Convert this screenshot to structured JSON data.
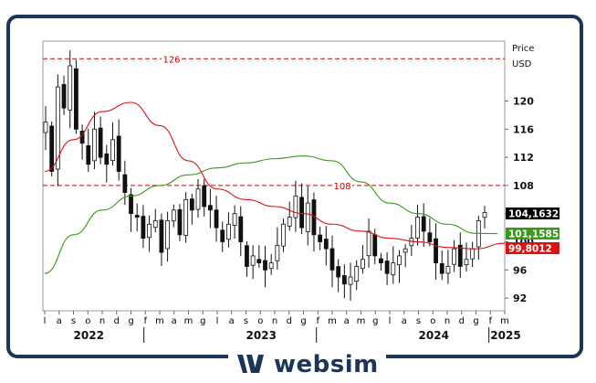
{
  "brand": {
    "name": "websim",
    "color": "#1c3559"
  },
  "chart_data": {
    "type": "candlestick",
    "axis_title": "Price",
    "axis_unit": "USD",
    "y_ticks": [
      92,
      96,
      100,
      104,
      108,
      112,
      116,
      120
    ],
    "ylim": [
      90.2,
      128.5
    ],
    "month_labels": [
      "l",
      "a",
      "s",
      "o",
      "n",
      "d",
      "g",
      "f",
      "m",
      "a",
      "m",
      "g",
      "l",
      "a",
      "s",
      "o",
      "n",
      "d",
      "g",
      "f",
      "m",
      "a",
      "m",
      "g",
      "l",
      "a",
      "s",
      "o",
      "n",
      "d",
      "g",
      "f",
      "m"
    ],
    "year_labels": [
      {
        "text": "2022",
        "month_index": 3
      },
      {
        "text": "2023",
        "month_index": 15
      },
      {
        "text": "2024",
        "month_index": 27
      },
      {
        "text": "2025",
        "month_index": 32
      }
    ],
    "year_separators": [
      6.9,
      18.9,
      30.9
    ],
    "levels": [
      {
        "value": 126,
        "label": "126"
      },
      {
        "value": 108,
        "label": "108"
      }
    ],
    "price_close": [
      117.0,
      110.0,
      122.0,
      119.0,
      125.0,
      116.0,
      114.0,
      111.0,
      116.0,
      112.0,
      111.0,
      114.5,
      110.0,
      107.0,
      104.0,
      103.5,
      100.5,
      102.5,
      103.0,
      98.5,
      103.0,
      104.5,
      101.0,
      106.0,
      104.5,
      107.5,
      105.0,
      104.5,
      102.0,
      100.0,
      102.5,
      104.0,
      100.0,
      96.5,
      98.0,
      97.0,
      96.0,
      97.0,
      99.5,
      102.5,
      103.5,
      106.5,
      102.0,
      105.5,
      101.0,
      100.0,
      99.0,
      96.0,
      95.0,
      94.0,
      95.0,
      96.5,
      97.5,
      101.5,
      98.0,
      97.0,
      95.5,
      97.0,
      98.0,
      99.0,
      100.5,
      103.5,
      101.5,
      100.0,
      97.0,
      95.5,
      96.5,
      99.0,
      96.5,
      97.5,
      99.0,
      103.0,
      104.16
    ],
    "series": [
      {
        "name": "104,1632",
        "latest": "104,1632",
        "color": "#000000",
        "values": [
          117.0,
          110.0,
          122.0,
          119.0,
          125.0,
          116.0,
          114.0,
          111.0,
          116.0,
          112.0,
          111.0,
          114.5,
          110.0,
          107.0,
          104.0,
          103.5,
          100.5,
          102.5,
          103.0,
          98.5,
          103.0,
          104.5,
          101.0,
          106.0,
          104.5,
          107.5,
          105.0,
          104.5,
          102.0,
          100.0,
          102.5,
          104.0,
          100.0,
          96.5,
          98.0,
          97.0,
          96.0,
          97.0,
          99.5,
          102.5,
          103.5,
          106.5,
          102.0,
          105.5,
          101.0,
          100.0,
          99.0,
          96.0,
          95.0,
          94.0,
          95.0,
          96.5,
          97.5,
          101.5,
          98.0,
          97.0,
          95.5,
          97.0,
          98.0,
          99.0,
          100.5,
          103.5,
          101.5,
          100.0,
          97.0,
          95.5,
          96.5,
          99.0,
          96.5,
          97.5,
          99.0,
          103.0,
          104.16
        ]
      },
      {
        "name": "101,1585",
        "latest": "101,1585",
        "color": "#3a9a1a",
        "x": [
          0,
          2,
          4,
          6,
          8,
          10,
          12,
          14,
          16,
          18,
          20,
          22,
          24,
          26,
          28,
          30,
          31.5
        ],
        "values": [
          95.5,
          101.0,
          104.5,
          106.5,
          108.0,
          109.5,
          110.5,
          111.2,
          111.8,
          112.2,
          111.5,
          108.5,
          105.5,
          104.0,
          102.5,
          101.2,
          101.16
        ]
      },
      {
        "name": "99,8012",
        "latest": "99,8012",
        "color": "#dd1111",
        "x": [
          0,
          2,
          4,
          6,
          8,
          10,
          12,
          14,
          16,
          18,
          20,
          22,
          24,
          26,
          28,
          30,
          32
        ],
        "values": [
          110.0,
          114.5,
          118.5,
          119.8,
          116.5,
          111.5,
          107.5,
          106.0,
          105.0,
          104.0,
          102.5,
          101.5,
          100.5,
          100.0,
          99.2,
          99.0,
          99.8
        ]
      }
    ]
  }
}
